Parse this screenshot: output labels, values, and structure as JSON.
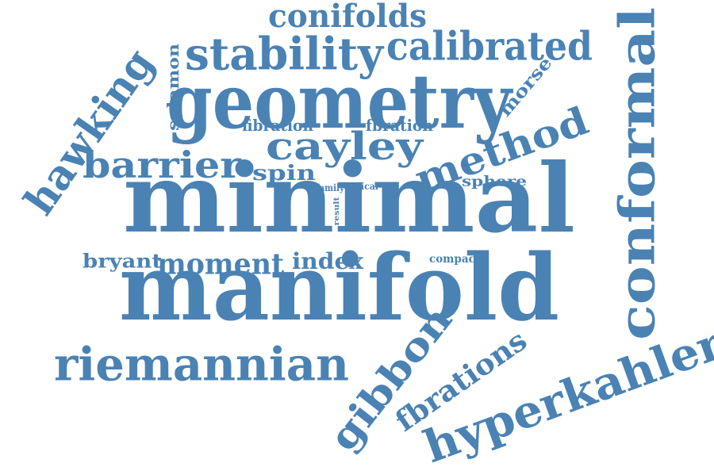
{
  "cloud": {
    "color": "#4a82b4",
    "words": [
      {
        "id": "minimal",
        "text": "minimal"
      },
      {
        "id": "manifold",
        "text": "manifold"
      },
      {
        "id": "geometry",
        "text": "geometry"
      },
      {
        "id": "conformal",
        "text": "conformal"
      },
      {
        "id": "hyperkahler",
        "text": "hyperkahler"
      },
      {
        "id": "riemannian",
        "text": "riemannian"
      },
      {
        "id": "stability",
        "text": "stability"
      },
      {
        "id": "calibrated",
        "text": "calibrated"
      },
      {
        "id": "hawking",
        "text": "hawking"
      },
      {
        "id": "gibbon",
        "text": "gibbon"
      },
      {
        "id": "cayley",
        "text": "cayley"
      },
      {
        "id": "method",
        "text": "method"
      },
      {
        "id": "barrier",
        "text": "barrier"
      },
      {
        "id": "conifolds",
        "text": "conifolds"
      },
      {
        "id": "fbrations",
        "text": "fbrations"
      },
      {
        "id": "moment",
        "text": "moment"
      },
      {
        "id": "spin",
        "text": "spin"
      },
      {
        "id": "bryant",
        "text": "bryant"
      },
      {
        "id": "index",
        "text": "index"
      },
      {
        "id": "sphere",
        "text": "sphere"
      },
      {
        "id": "morse",
        "text": "morse"
      },
      {
        "id": "salamon",
        "text": "salamon"
      },
      {
        "id": "fibration",
        "text": "fibration"
      },
      {
        "id": "fbration",
        "text": "fbration"
      },
      {
        "id": "compact",
        "text": "compact"
      },
      {
        "id": "family",
        "text": "family"
      },
      {
        "id": "conical",
        "text": "conical"
      },
      {
        "id": "result",
        "text": "result"
      }
    ]
  }
}
